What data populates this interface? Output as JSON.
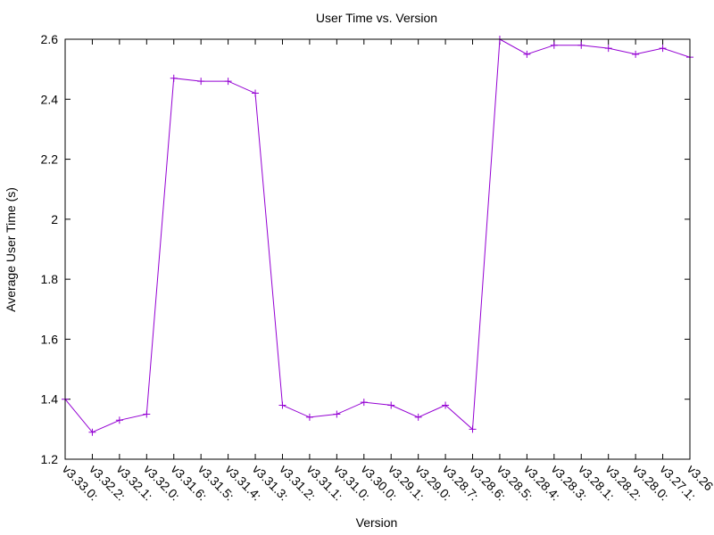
{
  "chart_data": {
    "type": "line",
    "title": "User Time vs. Version",
    "xlabel": "Version",
    "ylabel": "Average User Time (s)",
    "ylim": [
      1.2,
      2.6
    ],
    "yticks": [
      1.2,
      1.4,
      1.6,
      1.8,
      2,
      2.2,
      2.4,
      2.6
    ],
    "ytick_labels": [
      "1.2",
      "1.4",
      "1.6",
      "1.8",
      "2",
      "2.2",
      "2.4",
      "2.6"
    ],
    "grid": false,
    "legend": "none",
    "line_color": "#9400d3",
    "categories": [
      "v3.33.0:",
      "v3.32.2:",
      "v3.32.1:",
      "v3.32.0:",
      "v3.31.6:",
      "v3.31.5:",
      "v3.31.4:",
      "v3.31.3:",
      "v3.31.2:",
      "v3.31.1:",
      "v3.31.0:",
      "v3.30.0:",
      "v3.29.1:",
      "v3.29.0:",
      "v3.28.7:",
      "v3.28.6:",
      "v3.28.5:",
      "v3.28.4:",
      "v3.28.3:",
      "v3.28.1:",
      "v3.28.2:",
      "v3.28.0:",
      "v3.27.1:",
      "v3.26"
    ],
    "values": [
      1.4,
      1.29,
      1.33,
      1.35,
      2.47,
      2.46,
      2.46,
      2.42,
      1.38,
      1.34,
      1.35,
      1.39,
      1.38,
      1.34,
      1.38,
      1.3,
      2.6,
      2.55,
      2.58,
      2.58,
      2.57,
      2.55,
      2.57,
      2.54
    ]
  }
}
